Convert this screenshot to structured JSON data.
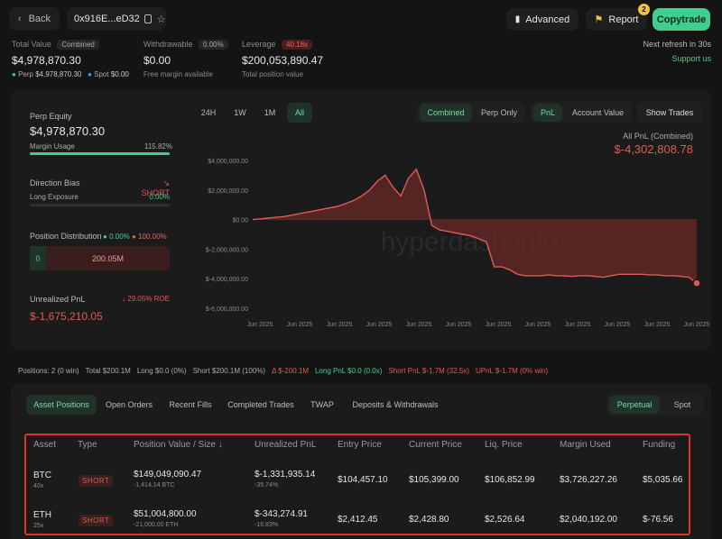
{
  "header": {
    "back_label": "Back",
    "address": "0x916E...eD32",
    "advanced_label": "Advanced",
    "report_label": "Report",
    "report_badge": "2",
    "copytrade_label": "Copytrade"
  },
  "summary": {
    "total_value_label": "Total Value",
    "combined_label": "Combined",
    "total_value": "$4,978,870.30",
    "perp_label": "Perp",
    "perp_value": "$4,978,870.30",
    "spot_label": "Spot",
    "spot_value": "$0.00",
    "withdrawable_label": "Withdrawable",
    "withdrawable_pct": "0.00%",
    "withdrawable_value": "$0.00",
    "withdrawable_sub": "Free margin available",
    "leverage_label": "Leverage",
    "leverage_badge": "40.18x",
    "leverage_value": "$200,053,890.47",
    "leverage_sub": "Total position value",
    "refresh_text": "Next refresh in 30s",
    "support_label": "Support us"
  },
  "left_panel": {
    "perp_equity_label": "Perp Equity",
    "perp_equity_value": "$4,978,870.30",
    "margin_usage_label": "Margin Usage",
    "margin_usage_value": "115.82%",
    "margin_usage_fraction": 1.0,
    "direction_bias_label": "Direction Bias",
    "direction_bias_value": "SHORT",
    "long_exposure_label": "Long Exposure",
    "long_exposure_value": "0.00%",
    "position_dist_label": "Position Distribution",
    "dist_long_pct": "0.00%",
    "dist_short_pct": "100.00%",
    "dist_long_value": "0",
    "dist_short_value": "200.05M",
    "unrealized_pnl_label": "Unrealized PnL",
    "roe_value": "29.05% ROE",
    "unrealized_pnl_value": "$-1,675,210.05"
  },
  "chart_controls": {
    "ranges": [
      "24H",
      "1W",
      "1M",
      "All"
    ],
    "active_range": "All",
    "modes": [
      "Combined",
      "Perp Only"
    ],
    "metrics": [
      "PnL",
      "Account Value"
    ],
    "show_trades_label": "Show Trades",
    "all_pnl_label": "All PnL (Combined)",
    "all_pnl_value": "$-4,302,808.78",
    "watermark": "hyperdash.info"
  },
  "chart_data": {
    "type": "area",
    "title": "All PnL (Combined)",
    "yticks": [
      "$4,000,000.00",
      "$2,000,000.00",
      "$0.00",
      "$-2,000,000.00",
      "$-4,000,000.00",
      "$-6,000,000.00"
    ],
    "ylim": [
      -6000000,
      4000000
    ],
    "xticks": [
      "Jun 2025",
      "Jun 2025",
      "Jun 2025",
      "Jun 2025",
      "Jun 2025",
      "Jun 2025",
      "Jun 2025",
      "Jun 2025",
      "Jun 2025",
      "Jun 2025",
      "Jun 2025",
      "Jun 2025"
    ],
    "series": [
      {
        "values": [
          0,
          50000,
          100000,
          150000,
          200000,
          300000,
          400000,
          500000,
          600000,
          700000,
          800000,
          900000,
          1100000,
          1300000,
          1600000,
          2000000,
          2600000,
          3000000,
          2200000,
          1600000,
          2800000,
          3400000,
          2000000,
          -400000,
          -700000,
          -800000,
          -900000,
          -1000000,
          -1100000,
          -1300000,
          -1500000,
          -3200000,
          -3200000,
          -3400000,
          -3700000,
          -3800000,
          -3800000,
          -3800000,
          -3750000,
          -3800000,
          -3800000,
          -3850000,
          -3800000,
          -3800000,
          -3850000,
          -3900000,
          -3800000,
          -3700000,
          -3700000,
          -3700000,
          -3700000,
          -3750000,
          -3750000,
          -3800000,
          -3800000,
          -3850000,
          -3900000,
          -4302808
        ]
      }
    ],
    "grid": false
  },
  "stats_bar": {
    "items": [
      "Positions: 2 (0 win)",
      "Total $200.1M",
      "Long $0.0 (0%)",
      "Short $200.1M (100%)",
      "Δ $-200.1M",
      "Long PnL $0.0 (0.0x)",
      "Short PnL $-1.7M (32.5x)",
      "UPnL $-1.7M (0% win)"
    ]
  },
  "tabs": {
    "items": [
      "Asset Positions",
      "Open Orders",
      "Recent Fills",
      "Completed Trades",
      "TWAP",
      "Deposits & Withdrawals"
    ],
    "active": "Asset Positions",
    "market_tabs": [
      "Perpetual",
      "Spot"
    ]
  },
  "table": {
    "headers": [
      "Asset",
      "Type",
      "Position Value / Size",
      "Unrealized PnL",
      "Entry Price",
      "Current Price",
      "Liq. Price",
      "Margin Used",
      "Funding"
    ],
    "sort_indicator": "↓",
    "rows": [
      {
        "asset": "BTC",
        "leverage": "40x",
        "type": "SHORT",
        "position_value": "$149,049,090.47",
        "size": "-1,414.14 BTC",
        "upnl": "$-1,331,935.14",
        "upnl_pct": "-35.74%",
        "entry": "$104,457.10",
        "current": "$105,399.00",
        "liq": "$106,852.99",
        "margin": "$3,726,227.26",
        "funding": "$5,035.66"
      },
      {
        "asset": "ETH",
        "leverage": "25x",
        "type": "SHORT",
        "position_value": "$51,004,800.00",
        "size": "-21,000.00 ETH",
        "upnl": "$-343,274.91",
        "upnl_pct": "-16.83%",
        "entry": "$2,412.45",
        "current": "$2,428.80",
        "liq": "$2,526.64",
        "margin": "$2,040,192.00",
        "funding": "$-76.56"
      }
    ]
  },
  "colors": {
    "accent_green": "#3ecf8e",
    "accent_red": "#e05a56",
    "copytrade_bg": "#3ecf8e",
    "highlight_border": "#e0342c"
  }
}
